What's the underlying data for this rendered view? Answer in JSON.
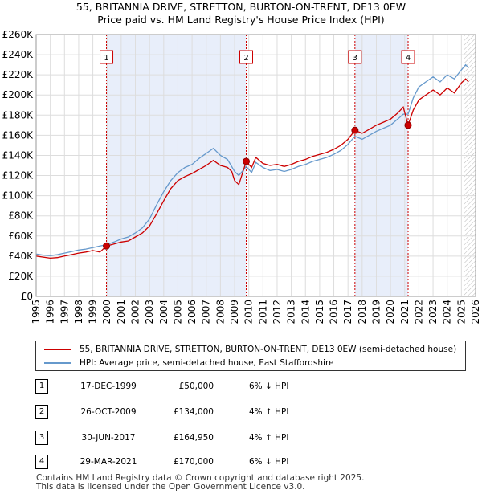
{
  "title_line1": "55, BRITANNIA DRIVE, STRETTON, BURTON-ON-TRENT, DE13 0EW",
  "title_line2": "Price paid vs. HM Land Registry's House Price Index (HPI)",
  "chart_data": {
    "type": "line",
    "xlim": [
      1995,
      2026
    ],
    "ylim": [
      0,
      260000
    ],
    "x_ticks": [
      1995,
      1996,
      1997,
      1998,
      1999,
      2000,
      2001,
      2002,
      2003,
      2004,
      2005,
      2006,
      2007,
      2008,
      2009,
      2010,
      2011,
      2012,
      2013,
      2014,
      2015,
      2016,
      2017,
      2018,
      2019,
      2020,
      2021,
      2022,
      2023,
      2024,
      2025,
      2026
    ],
    "y_ticks": [
      {
        "value": 0,
        "label": "£0"
      },
      {
        "value": 20000,
        "label": "£20K"
      },
      {
        "value": 40000,
        "label": "£40K"
      },
      {
        "value": 60000,
        "label": "£60K"
      },
      {
        "value": 80000,
        "label": "£80K"
      },
      {
        "value": 100000,
        "label": "£100K"
      },
      {
        "value": 120000,
        "label": "£120K"
      },
      {
        "value": 140000,
        "label": "£140K"
      },
      {
        "value": 160000,
        "label": "£160K"
      },
      {
        "value": 180000,
        "label": "£180K"
      },
      {
        "value": 200000,
        "label": "£200K"
      },
      {
        "value": 220000,
        "label": "£220K"
      },
      {
        "value": 240000,
        "label": "£240K"
      },
      {
        "value": 260000,
        "label": "£260K"
      }
    ],
    "shaded_regions": [
      [
        1999.96,
        2009.82
      ],
      [
        2017.49,
        2021.24
      ]
    ],
    "future_hatch_start": 2025.2,
    "series": [
      {
        "name": "55, BRITANNIA DRIVE, STRETTON, BURTON-ON-TRENT, DE13 0EW (semi-detached house)",
        "color": "#cc0000",
        "points": [
          [
            1995.0,
            40000
          ],
          [
            1995.5,
            39000
          ],
          [
            1996.0,
            38000
          ],
          [
            1996.5,
            38500
          ],
          [
            1997.0,
            40000
          ],
          [
            1997.5,
            41500
          ],
          [
            1998.0,
            43000
          ],
          [
            1998.5,
            44000
          ],
          [
            1999.0,
            45500
          ],
          [
            1999.5,
            44000
          ],
          [
            1999.96,
            50000
          ],
          [
            2000.5,
            52000
          ],
          [
            2001.0,
            54000
          ],
          [
            2001.5,
            55000
          ],
          [
            2002.0,
            59000
          ],
          [
            2002.5,
            63000
          ],
          [
            2003.0,
            70000
          ],
          [
            2003.5,
            82000
          ],
          [
            2004.0,
            95000
          ],
          [
            2004.5,
            107000
          ],
          [
            2005.0,
            115000
          ],
          [
            2005.5,
            119000
          ],
          [
            2006.0,
            122000
          ],
          [
            2006.5,
            126000
          ],
          [
            2007.0,
            130000
          ],
          [
            2007.5,
            135000
          ],
          [
            2008.0,
            130000
          ],
          [
            2008.5,
            128000
          ],
          [
            2008.8,
            124000
          ],
          [
            2009.0,
            115000
          ],
          [
            2009.3,
            111000
          ],
          [
            2009.82,
            134000
          ],
          [
            2010.2,
            128000
          ],
          [
            2010.5,
            138000
          ],
          [
            2011.0,
            132000
          ],
          [
            2011.5,
            130000
          ],
          [
            2012.0,
            131000
          ],
          [
            2012.5,
            129000
          ],
          [
            2013.0,
            131000
          ],
          [
            2013.5,
            134000
          ],
          [
            2014.0,
            136000
          ],
          [
            2014.5,
            139000
          ],
          [
            2015.0,
            141000
          ],
          [
            2015.5,
            143000
          ],
          [
            2016.0,
            146000
          ],
          [
            2016.5,
            150000
          ],
          [
            2017.0,
            156000
          ],
          [
            2017.49,
            164950
          ],
          [
            2018.0,
            162000
          ],
          [
            2018.5,
            166000
          ],
          [
            2019.0,
            170000
          ],
          [
            2019.5,
            173000
          ],
          [
            2020.0,
            176000
          ],
          [
            2020.5,
            182000
          ],
          [
            2020.9,
            188000
          ],
          [
            2021.24,
            170000
          ],
          [
            2021.6,
            185000
          ],
          [
            2022.0,
            195000
          ],
          [
            2022.5,
            200000
          ],
          [
            2023.0,
            205000
          ],
          [
            2023.5,
            200000
          ],
          [
            2024.0,
            207000
          ],
          [
            2024.5,
            202000
          ],
          [
            2025.0,
            212000
          ],
          [
            2025.3,
            216000
          ],
          [
            2025.5,
            213000
          ]
        ]
      },
      {
        "name": "HPI: Average price, semi-detached house, East Staffordshire",
        "color": "#6699cc",
        "points": [
          [
            1995.0,
            42000
          ],
          [
            1995.5,
            41000
          ],
          [
            1996.0,
            40500
          ],
          [
            1996.5,
            41500
          ],
          [
            1997.0,
            43000
          ],
          [
            1997.5,
            44500
          ],
          [
            1998.0,
            46000
          ],
          [
            1998.5,
            47000
          ],
          [
            1999.0,
            48500
          ],
          [
            1999.5,
            50000
          ],
          [
            2000.0,
            51500
          ],
          [
            2000.5,
            54000
          ],
          [
            2001.0,
            57000
          ],
          [
            2001.5,
            59000
          ],
          [
            2002.0,
            63000
          ],
          [
            2002.5,
            68000
          ],
          [
            2003.0,
            77000
          ],
          [
            2003.5,
            91000
          ],
          [
            2004.0,
            104000
          ],
          [
            2004.5,
            115000
          ],
          [
            2005.0,
            123000
          ],
          [
            2005.5,
            128000
          ],
          [
            2006.0,
            131000
          ],
          [
            2006.5,
            137000
          ],
          [
            2007.0,
            142000
          ],
          [
            2007.5,
            147000
          ],
          [
            2008.0,
            140000
          ],
          [
            2008.5,
            136000
          ],
          [
            2009.0,
            124000
          ],
          [
            2009.3,
            120000
          ],
          [
            2009.82,
            129000
          ],
          [
            2010.2,
            123000
          ],
          [
            2010.5,
            133000
          ],
          [
            2011.0,
            128000
          ],
          [
            2011.5,
            125000
          ],
          [
            2012.0,
            126000
          ],
          [
            2012.5,
            124000
          ],
          [
            2013.0,
            126000
          ],
          [
            2013.5,
            129000
          ],
          [
            2014.0,
            131000
          ],
          [
            2014.5,
            134000
          ],
          [
            2015.0,
            136000
          ],
          [
            2015.5,
            138000
          ],
          [
            2016.0,
            141000
          ],
          [
            2016.5,
            145000
          ],
          [
            2017.0,
            151000
          ],
          [
            2017.49,
            159000
          ],
          [
            2018.0,
            156000
          ],
          [
            2018.5,
            160000
          ],
          [
            2019.0,
            164000
          ],
          [
            2019.5,
            167000
          ],
          [
            2020.0,
            170000
          ],
          [
            2020.5,
            176000
          ],
          [
            2020.9,
            181000
          ],
          [
            2021.24,
            181000
          ],
          [
            2021.6,
            197000
          ],
          [
            2022.0,
            208000
          ],
          [
            2022.5,
            213000
          ],
          [
            2023.0,
            218000
          ],
          [
            2023.5,
            213000
          ],
          [
            2024.0,
            220000
          ],
          [
            2024.5,
            216000
          ],
          [
            2025.0,
            225000
          ],
          [
            2025.3,
            230000
          ],
          [
            2025.5,
            227000
          ]
        ]
      }
    ],
    "sales": [
      {
        "label": "1",
        "x": 1999.96,
        "y": 50000
      },
      {
        "label": "2",
        "x": 2009.82,
        "y": 134000
      },
      {
        "label": "3",
        "x": 2017.49,
        "y": 164950
      },
      {
        "label": "4",
        "x": 2021.24,
        "y": 170000
      }
    ]
  },
  "legend": {
    "property_label": "55, BRITANNIA DRIVE, STRETTON, BURTON-ON-TRENT, DE13 0EW (semi-detached house)",
    "hpi_label": "HPI: Average price, semi-detached house, East Staffordshire"
  },
  "transactions": [
    {
      "num": "1",
      "date": "17-DEC-1999",
      "price": "£50,000",
      "hpi": "6% ↓ HPI"
    },
    {
      "num": "2",
      "date": "26-OCT-2009",
      "price": "£134,000",
      "hpi": "4% ↑ HPI"
    },
    {
      "num": "3",
      "date": "30-JUN-2017",
      "price": "£164,950",
      "hpi": "4% ↑ HPI"
    },
    {
      "num": "4",
      "date": "29-MAR-2021",
      "price": "£170,000",
      "hpi": "6% ↓ HPI"
    }
  ],
  "footer": {
    "line1": "Contains HM Land Registry data © Crown copyright and database right 2025.",
    "line2": "This data is licensed under the Open Government Licence v3.0."
  },
  "colors": {
    "property": "#cc0000",
    "hpi": "#6699cc",
    "shade": "#e8eefa",
    "grid": "#dddddd"
  }
}
